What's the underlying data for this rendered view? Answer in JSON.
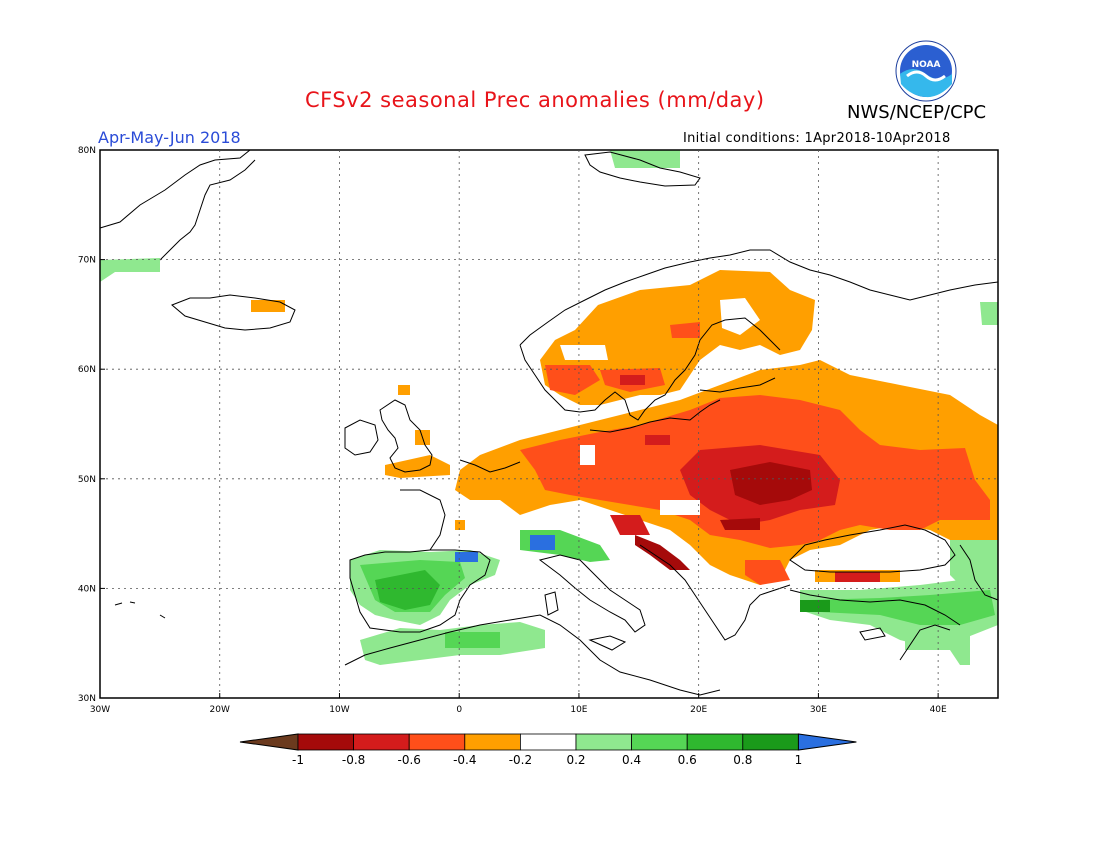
{
  "header": {
    "title": "CFSv2 seasonal Prec anomalies (mm/day)",
    "organization": "NWS/NCEP/CPC",
    "period": "Apr-May-Jun 2018",
    "initial_conditions": "Initial conditions: 1Apr2018-10Apr2018",
    "logo_text": "NOAA"
  },
  "map": {
    "lon_range": [
      -30,
      45
    ],
    "lat_range": [
      30,
      80
    ],
    "lat_labels": [
      "30N",
      "40N",
      "50N",
      "60N",
      "70N",
      "80N"
    ],
    "lon_labels": [
      "30W",
      "20W",
      "10W",
      "0",
      "10E",
      "20E",
      "30E",
      "40E"
    ],
    "lat_values": [
      30,
      40,
      50,
      60,
      70,
      80
    ],
    "lon_values": [
      -30,
      -20,
      -10,
      0,
      10,
      20,
      30,
      40
    ]
  },
  "colorbar": {
    "labels": [
      "-1",
      "-0.8",
      "-0.6",
      "-0.4",
      "-0.2",
      "0.2",
      "0.4",
      "0.6",
      "0.8",
      "1"
    ],
    "colors": [
      "#6b3a1e",
      "#a50a0a",
      "#d41c1c",
      "#ff4f1a",
      "#ff9f00",
      "#ffffff",
      "#8fe88f",
      "#55d655",
      "#2fb82f",
      "#1a9a1a",
      "#2a6fe0"
    ]
  },
  "colors": {
    "dry_light": "#ff9f00",
    "dry_mid": "#ff4f1a",
    "dry_strong": "#d41c1c",
    "dry_extreme": "#a50a0a",
    "wet_light": "#8fe88f",
    "wet_mid": "#55d655",
    "wet_strong": "#2fb82f",
    "wet_extreme": "#2a6fe0"
  }
}
